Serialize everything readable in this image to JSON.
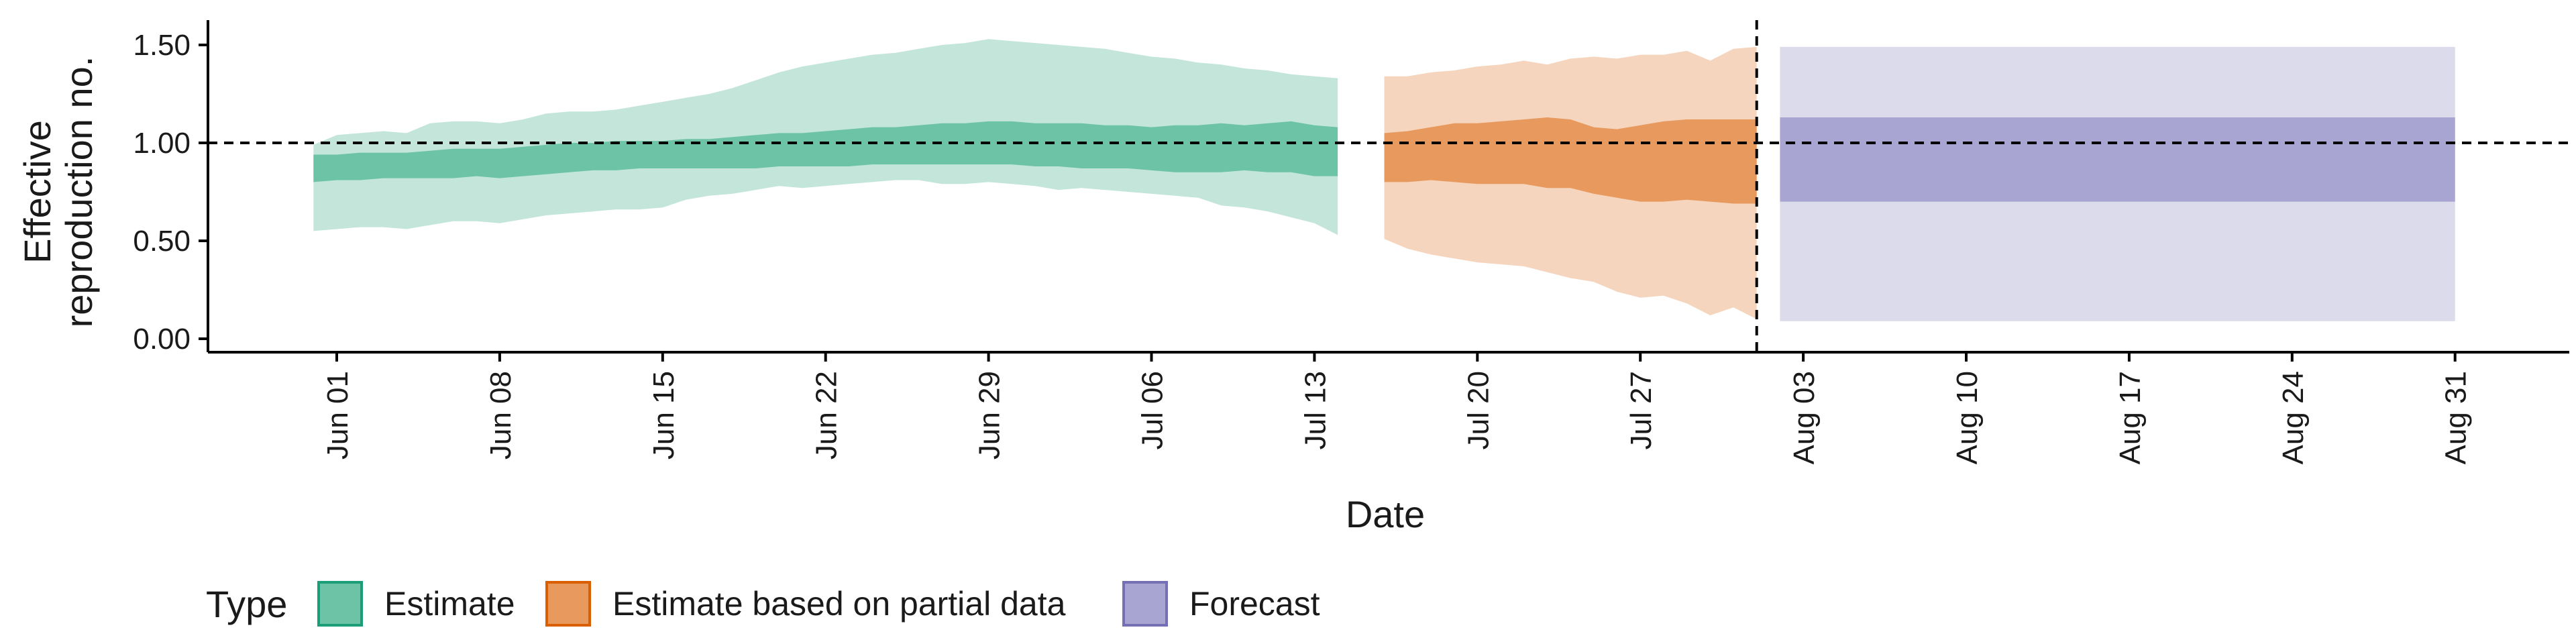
{
  "chart_data": {
    "type": "area",
    "title": "",
    "xlabel": "Date",
    "ylabel_lines": [
      "Effective",
      "reproduction no."
    ],
    "ylim": [
      -0.05,
      1.65
    ],
    "yticks": [
      0.0,
      0.5,
      1.0,
      1.5
    ],
    "ytick_labels": [
      "0.00",
      "0.50",
      "1.00",
      "1.50"
    ],
    "x_range_days": [
      -8,
      75
    ],
    "x_origin_date": "2020-06-01",
    "xticks": [
      {
        "day": 0,
        "label": "Jun 01"
      },
      {
        "day": 7,
        "label": "Jun 08"
      },
      {
        "day": 14,
        "label": "Jun 15"
      },
      {
        "day": 21,
        "label": "Jun 22"
      },
      {
        "day": 28,
        "label": "Jun 29"
      },
      {
        "day": 35,
        "label": "Jul 06"
      },
      {
        "day": 42,
        "label": "Jul 13"
      },
      {
        "day": 49,
        "label": "Jul 20"
      },
      {
        "day": 56,
        "label": "Jul 27"
      },
      {
        "day": 63,
        "label": "Aug 03"
      },
      {
        "day": 70,
        "label": "Aug 10"
      },
      {
        "day": 77,
        "label": "Aug 17"
      },
      {
        "day": 84,
        "label": "Aug 24"
      },
      {
        "day": 91,
        "label": "Aug 31"
      }
    ],
    "reference_line_y": 1.0,
    "forecast_divider_day": 61,
    "legend": {
      "title": "Type",
      "position": "bottom-left",
      "entries": [
        {
          "label": "Estimate",
          "fill": "#6cc3a6",
          "stroke": "#1b9e77"
        },
        {
          "label": "Estimate based on partial data",
          "fill": "#e89a5e",
          "stroke": "#d95f02"
        },
        {
          "label": "Forecast",
          "fill": "#a8a5d2",
          "stroke": "#7570b3"
        }
      ]
    },
    "series": [
      {
        "name": "Estimate",
        "outer_color": "#c4e6da",
        "inner_color": "#6cc3a6",
        "x": [
          -1,
          0,
          1,
          2,
          3,
          4,
          5,
          6,
          7,
          8,
          9,
          10,
          11,
          12,
          13,
          14,
          15,
          16,
          17,
          18,
          19,
          20,
          21,
          22,
          23,
          24,
          25,
          26,
          27,
          28,
          29,
          30,
          31,
          32,
          33,
          34,
          35,
          36,
          37,
          38,
          39,
          40,
          41,
          42,
          43
        ],
        "outer_upper": [
          0.99,
          1.04,
          1.05,
          1.06,
          1.05,
          1.1,
          1.11,
          1.11,
          1.1,
          1.12,
          1.15,
          1.16,
          1.16,
          1.17,
          1.19,
          1.21,
          1.23,
          1.25,
          1.28,
          1.32,
          1.36,
          1.39,
          1.41,
          1.43,
          1.45,
          1.46,
          1.48,
          1.5,
          1.51,
          1.53,
          1.52,
          1.51,
          1.5,
          1.49,
          1.48,
          1.46,
          1.44,
          1.43,
          1.41,
          1.4,
          1.38,
          1.37,
          1.35,
          1.34,
          1.33
        ],
        "outer_lower": [
          0.55,
          0.56,
          0.57,
          0.57,
          0.56,
          0.58,
          0.6,
          0.6,
          0.59,
          0.61,
          0.63,
          0.64,
          0.65,
          0.66,
          0.66,
          0.67,
          0.71,
          0.73,
          0.74,
          0.76,
          0.78,
          0.77,
          0.78,
          0.79,
          0.8,
          0.81,
          0.81,
          0.79,
          0.79,
          0.8,
          0.79,
          0.78,
          0.76,
          0.77,
          0.76,
          0.75,
          0.74,
          0.73,
          0.72,
          0.68,
          0.67,
          0.65,
          0.62,
          0.59,
          0.53
        ],
        "inner_upper": [
          0.94,
          0.94,
          0.95,
          0.95,
          0.95,
          0.96,
          0.97,
          0.97,
          0.97,
          0.98,
          0.99,
          1.0,
          1.0,
          1.01,
          1.01,
          1.01,
          1.02,
          1.02,
          1.03,
          1.04,
          1.05,
          1.05,
          1.06,
          1.07,
          1.08,
          1.08,
          1.09,
          1.1,
          1.1,
          1.11,
          1.11,
          1.1,
          1.1,
          1.1,
          1.09,
          1.09,
          1.08,
          1.09,
          1.09,
          1.1,
          1.09,
          1.1,
          1.11,
          1.09,
          1.08
        ],
        "inner_lower": [
          0.8,
          0.81,
          0.81,
          0.82,
          0.82,
          0.82,
          0.82,
          0.83,
          0.82,
          0.83,
          0.84,
          0.85,
          0.86,
          0.86,
          0.87,
          0.87,
          0.87,
          0.87,
          0.87,
          0.87,
          0.88,
          0.88,
          0.88,
          0.88,
          0.89,
          0.89,
          0.89,
          0.89,
          0.89,
          0.89,
          0.89,
          0.88,
          0.88,
          0.87,
          0.87,
          0.87,
          0.86,
          0.85,
          0.85,
          0.85,
          0.86,
          0.85,
          0.85,
          0.83,
          0.83
        ]
      },
      {
        "name": "Estimate based on partial data",
        "outer_color": "#f5d5bd",
        "inner_color": "#e89a5e",
        "x": [
          45,
          46,
          47,
          48,
          49,
          50,
          51,
          52,
          53,
          54,
          55,
          56,
          57,
          58,
          59,
          60,
          61
        ],
        "outer_upper": [
          1.34,
          1.34,
          1.36,
          1.37,
          1.39,
          1.4,
          1.42,
          1.4,
          1.43,
          1.44,
          1.43,
          1.45,
          1.45,
          1.47,
          1.42,
          1.48,
          1.49
        ],
        "outer_lower": [
          0.51,
          0.46,
          0.43,
          0.41,
          0.39,
          0.38,
          0.37,
          0.34,
          0.31,
          0.29,
          0.24,
          0.21,
          0.22,
          0.18,
          0.12,
          0.16,
          0.1
        ],
        "inner_upper": [
          1.05,
          1.06,
          1.08,
          1.1,
          1.1,
          1.11,
          1.12,
          1.13,
          1.12,
          1.08,
          1.07,
          1.09,
          1.11,
          1.12,
          1.12,
          1.12,
          1.12
        ],
        "inner_lower": [
          0.8,
          0.8,
          0.81,
          0.8,
          0.79,
          0.79,
          0.79,
          0.77,
          0.77,
          0.74,
          0.72,
          0.7,
          0.7,
          0.71,
          0.7,
          0.69,
          0.69
        ]
      },
      {
        "name": "Forecast",
        "outer_color": "#dcdbec",
        "inner_color": "#a8a5d2",
        "x": [
          62,
          91
        ],
        "outer_upper": [
          1.49,
          1.49
        ],
        "outer_lower": [
          0.09,
          0.09
        ],
        "inner_upper": [
          1.13,
          1.13
        ],
        "inner_lower": [
          0.7,
          0.7
        ]
      }
    ]
  }
}
